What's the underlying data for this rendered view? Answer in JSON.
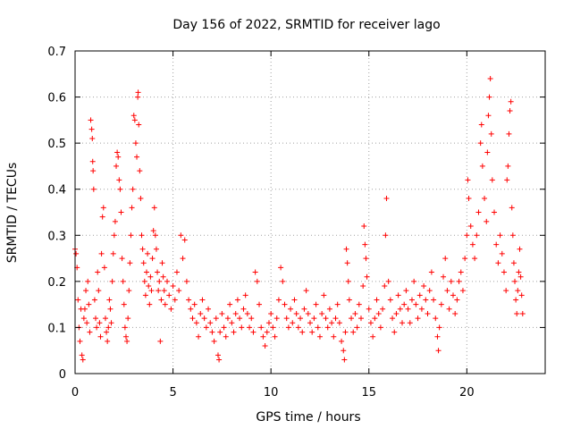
{
  "chart_data": {
    "type": "scatter",
    "title": "Day 156 of 2022, SRMTID for receiver lago",
    "xlabel": "GPS time / hours",
    "ylabel": "SRMTID / TECUs",
    "xlim": [
      0,
      24
    ],
    "ylim": [
      0,
      0.7
    ],
    "xticks": [
      0,
      5,
      10,
      15,
      20
    ],
    "xtick_labels": [
      "0",
      "5",
      "10",
      "15",
      "20"
    ],
    "yticks": [
      0,
      0.1,
      0.2,
      0.3,
      0.4,
      0.5,
      0.6,
      0.7
    ],
    "ytick_labels": [
      "0",
      "0.1",
      "0.2",
      "0.3",
      "0.4",
      "0.5",
      "0.6",
      "0.7"
    ],
    "grid": true,
    "marker": "+",
    "color": "#ff0000",
    "series": [
      {
        "name": "SRMTID",
        "points": [
          [
            0.0,
            0.27
          ],
          [
            0.05,
            0.26
          ],
          [
            0.1,
            0.23
          ],
          [
            0.15,
            0.16
          ],
          [
            0.2,
            0.1
          ],
          [
            0.25,
            0.07
          ],
          [
            0.3,
            0.14
          ],
          [
            0.35,
            0.04
          ],
          [
            0.4,
            0.03
          ],
          [
            0.45,
            0.12
          ],
          [
            0.5,
            0.14
          ],
          [
            0.55,
            0.18
          ],
          [
            0.6,
            0.11
          ],
          [
            0.65,
            0.2
          ],
          [
            0.7,
            0.15
          ],
          [
            0.75,
            0.09
          ],
          [
            0.8,
            0.55
          ],
          [
            0.85,
            0.53
          ],
          [
            0.88,
            0.51
          ],
          [
            0.9,
            0.46
          ],
          [
            0.92,
            0.44
          ],
          [
            0.95,
            0.4
          ],
          [
            1.0,
            0.16
          ],
          [
            1.05,
            0.12
          ],
          [
            1.1,
            0.1
          ],
          [
            1.15,
            0.22
          ],
          [
            1.2,
            0.18
          ],
          [
            1.25,
            0.11
          ],
          [
            1.3,
            0.08
          ],
          [
            1.35,
            0.26
          ],
          [
            1.4,
            0.34
          ],
          [
            1.45,
            0.36
          ],
          [
            1.5,
            0.23
          ],
          [
            1.55,
            0.12
          ],
          [
            1.6,
            0.09
          ],
          [
            1.65,
            0.07
          ],
          [
            1.7,
            0.1
          ],
          [
            1.75,
            0.16
          ],
          [
            1.8,
            0.14
          ],
          [
            1.85,
            0.11
          ],
          [
            1.9,
            0.2
          ],
          [
            1.95,
            0.26
          ],
          [
            2.0,
            0.3
          ],
          [
            2.05,
            0.33
          ],
          [
            2.1,
            0.45
          ],
          [
            2.15,
            0.48
          ],
          [
            2.2,
            0.47
          ],
          [
            2.25,
            0.42
          ],
          [
            2.3,
            0.4
          ],
          [
            2.35,
            0.35
          ],
          [
            2.4,
            0.25
          ],
          [
            2.45,
            0.2
          ],
          [
            2.5,
            0.15
          ],
          [
            2.55,
            0.1
          ],
          [
            2.6,
            0.08
          ],
          [
            2.65,
            0.07
          ],
          [
            2.7,
            0.12
          ],
          [
            2.75,
            0.18
          ],
          [
            2.8,
            0.24
          ],
          [
            2.85,
            0.3
          ],
          [
            2.9,
            0.36
          ],
          [
            2.95,
            0.4
          ],
          [
            3.0,
            0.56
          ],
          [
            3.05,
            0.55
          ],
          [
            3.1,
            0.5
          ],
          [
            3.15,
            0.47
          ],
          [
            3.2,
            0.6
          ],
          [
            3.22,
            0.61
          ],
          [
            3.25,
            0.54
          ],
          [
            3.3,
            0.44
          ],
          [
            3.35,
            0.38
          ],
          [
            3.4,
            0.3
          ],
          [
            3.45,
            0.27
          ],
          [
            3.5,
            0.24
          ],
          [
            3.55,
            0.2
          ],
          [
            3.6,
            0.17
          ],
          [
            3.65,
            0.22
          ],
          [
            3.7,
            0.26
          ],
          [
            3.75,
            0.19
          ],
          [
            3.8,
            0.15
          ],
          [
            3.85,
            0.21
          ],
          [
            3.9,
            0.18
          ],
          [
            3.95,
            0.25
          ],
          [
            4.0,
            0.31
          ],
          [
            4.05,
            0.36
          ],
          [
            4.1,
            0.3
          ],
          [
            4.15,
            0.27
          ],
          [
            4.2,
            0.22
          ],
          [
            4.25,
            0.18
          ],
          [
            4.3,
            0.2
          ],
          [
            4.35,
            0.07
          ],
          [
            4.4,
            0.16
          ],
          [
            4.45,
            0.24
          ],
          [
            4.5,
            0.21
          ],
          [
            4.55,
            0.18
          ],
          [
            4.6,
            0.15
          ],
          [
            4.7,
            0.2
          ],
          [
            4.8,
            0.17
          ],
          [
            4.9,
            0.14
          ],
          [
            5.0,
            0.19
          ],
          [
            5.1,
            0.16
          ],
          [
            5.2,
            0.22
          ],
          [
            5.3,
            0.18
          ],
          [
            5.4,
            0.3
          ],
          [
            5.5,
            0.25
          ],
          [
            5.6,
            0.29
          ],
          [
            5.7,
            0.2
          ],
          [
            5.8,
            0.16
          ],
          [
            5.9,
            0.14
          ],
          [
            6.0,
            0.12
          ],
          [
            6.1,
            0.15
          ],
          [
            6.2,
            0.11
          ],
          [
            6.3,
            0.08
          ],
          [
            6.4,
            0.13
          ],
          [
            6.5,
            0.16
          ],
          [
            6.6,
            0.12
          ],
          [
            6.7,
            0.1
          ],
          [
            6.8,
            0.14
          ],
          [
            6.9,
            0.11
          ],
          [
            7.0,
            0.09
          ],
          [
            7.1,
            0.07
          ],
          [
            7.2,
            0.12
          ],
          [
            7.3,
            0.04
          ],
          [
            7.35,
            0.03
          ],
          [
            7.4,
            0.09
          ],
          [
            7.5,
            0.13
          ],
          [
            7.6,
            0.1
          ],
          [
            7.7,
            0.08
          ],
          [
            7.8,
            0.12
          ],
          [
            7.9,
            0.15
          ],
          [
            8.0,
            0.11
          ],
          [
            8.1,
            0.09
          ],
          [
            8.2,
            0.13
          ],
          [
            8.3,
            0.16
          ],
          [
            8.4,
            0.12
          ],
          [
            8.5,
            0.1
          ],
          [
            8.6,
            0.14
          ],
          [
            8.7,
            0.17
          ],
          [
            8.8,
            0.13
          ],
          [
            8.9,
            0.1
          ],
          [
            9.0,
            0.12
          ],
          [
            9.1,
            0.09
          ],
          [
            9.2,
            0.22
          ],
          [
            9.3,
            0.2
          ],
          [
            9.4,
            0.15
          ],
          [
            9.5,
            0.1
          ],
          [
            9.6,
            0.08
          ],
          [
            9.7,
            0.06
          ],
          [
            9.8,
            0.09
          ],
          [
            9.9,
            0.11
          ],
          [
            10.0,
            0.13
          ],
          [
            10.1,
            0.1
          ],
          [
            10.2,
            0.08
          ],
          [
            10.3,
            0.12
          ],
          [
            10.4,
            0.16
          ],
          [
            10.5,
            0.23
          ],
          [
            10.6,
            0.2
          ],
          [
            10.7,
            0.15
          ],
          [
            10.8,
            0.12
          ],
          [
            10.9,
            0.1
          ],
          [
            11.0,
            0.14
          ],
          [
            11.1,
            0.11
          ],
          [
            11.2,
            0.16
          ],
          [
            11.3,
            0.13
          ],
          [
            11.4,
            0.1
          ],
          [
            11.5,
            0.12
          ],
          [
            11.6,
            0.09
          ],
          [
            11.7,
            0.14
          ],
          [
            11.8,
            0.18
          ],
          [
            11.9,
            0.13
          ],
          [
            12.0,
            0.11
          ],
          [
            12.1,
            0.09
          ],
          [
            12.2,
            0.12
          ],
          [
            12.3,
            0.15
          ],
          [
            12.4,
            0.1
          ],
          [
            12.5,
            0.08
          ],
          [
            12.6,
            0.13
          ],
          [
            12.7,
            0.17
          ],
          [
            12.8,
            0.12
          ],
          [
            12.9,
            0.1
          ],
          [
            13.0,
            0.14
          ],
          [
            13.1,
            0.11
          ],
          [
            13.2,
            0.08
          ],
          [
            13.3,
            0.12
          ],
          [
            13.4,
            0.15
          ],
          [
            13.5,
            0.11
          ],
          [
            13.6,
            0.07
          ],
          [
            13.7,
            0.05
          ],
          [
            13.75,
            0.03
          ],
          [
            13.8,
            0.09
          ],
          [
            13.85,
            0.27
          ],
          [
            13.9,
            0.24
          ],
          [
            13.95,
            0.2
          ],
          [
            14.0,
            0.16
          ],
          [
            14.1,
            0.12
          ],
          [
            14.2,
            0.09
          ],
          [
            14.3,
            0.13
          ],
          [
            14.4,
            0.1
          ],
          [
            14.5,
            0.15
          ],
          [
            14.6,
            0.12
          ],
          [
            14.7,
            0.19
          ],
          [
            14.75,
            0.32
          ],
          [
            14.8,
            0.28
          ],
          [
            14.85,
            0.25
          ],
          [
            14.9,
            0.21
          ],
          [
            15.0,
            0.14
          ],
          [
            15.1,
            0.11
          ],
          [
            15.2,
            0.08
          ],
          [
            15.3,
            0.12
          ],
          [
            15.4,
            0.16
          ],
          [
            15.5,
            0.13
          ],
          [
            15.6,
            0.1
          ],
          [
            15.7,
            0.14
          ],
          [
            15.8,
            0.19
          ],
          [
            15.85,
            0.3
          ],
          [
            15.9,
            0.38
          ],
          [
            16.0,
            0.2
          ],
          [
            16.1,
            0.16
          ],
          [
            16.2,
            0.12
          ],
          [
            16.3,
            0.09
          ],
          [
            16.4,
            0.13
          ],
          [
            16.5,
            0.17
          ],
          [
            16.6,
            0.14
          ],
          [
            16.7,
            0.11
          ],
          [
            16.8,
            0.15
          ],
          [
            16.9,
            0.18
          ],
          [
            17.0,
            0.14
          ],
          [
            17.1,
            0.11
          ],
          [
            17.2,
            0.16
          ],
          [
            17.3,
            0.2
          ],
          [
            17.4,
            0.15
          ],
          [
            17.5,
            0.12
          ],
          [
            17.6,
            0.17
          ],
          [
            17.7,
            0.14
          ],
          [
            17.8,
            0.19
          ],
          [
            17.9,
            0.16
          ],
          [
            18.0,
            0.13
          ],
          [
            18.1,
            0.18
          ],
          [
            18.2,
            0.22
          ],
          [
            18.3,
            0.16
          ],
          [
            18.4,
            0.12
          ],
          [
            18.5,
            0.08
          ],
          [
            18.55,
            0.05
          ],
          [
            18.6,
            0.1
          ],
          [
            18.7,
            0.15
          ],
          [
            18.8,
            0.21
          ],
          [
            18.9,
            0.25
          ],
          [
            19.0,
            0.18
          ],
          [
            19.1,
            0.14
          ],
          [
            19.2,
            0.2
          ],
          [
            19.3,
            0.17
          ],
          [
            19.4,
            0.13
          ],
          [
            19.5,
            0.16
          ],
          [
            19.6,
            0.2
          ],
          [
            19.7,
            0.22
          ],
          [
            19.8,
            0.18
          ],
          [
            19.9,
            0.25
          ],
          [
            20.0,
            0.3
          ],
          [
            20.05,
            0.42
          ],
          [
            20.1,
            0.38
          ],
          [
            20.2,
            0.32
          ],
          [
            20.3,
            0.28
          ],
          [
            20.4,
            0.25
          ],
          [
            20.5,
            0.3
          ],
          [
            20.6,
            0.35
          ],
          [
            20.7,
            0.5
          ],
          [
            20.75,
            0.54
          ],
          [
            20.8,
            0.45
          ],
          [
            20.9,
            0.38
          ],
          [
            21.0,
            0.33
          ],
          [
            21.05,
            0.48
          ],
          [
            21.1,
            0.56
          ],
          [
            21.15,
            0.6
          ],
          [
            21.2,
            0.64
          ],
          [
            21.25,
            0.52
          ],
          [
            21.3,
            0.42
          ],
          [
            21.4,
            0.35
          ],
          [
            21.5,
            0.28
          ],
          [
            21.6,
            0.24
          ],
          [
            21.7,
            0.3
          ],
          [
            21.8,
            0.26
          ],
          [
            21.9,
            0.22
          ],
          [
            22.0,
            0.18
          ],
          [
            22.05,
            0.42
          ],
          [
            22.1,
            0.45
          ],
          [
            22.15,
            0.52
          ],
          [
            22.2,
            0.57
          ],
          [
            22.25,
            0.59
          ],
          [
            22.3,
            0.36
          ],
          [
            22.35,
            0.3
          ],
          [
            22.4,
            0.24
          ],
          [
            22.45,
            0.2
          ],
          [
            22.5,
            0.16
          ],
          [
            22.55,
            0.13
          ],
          [
            22.6,
            0.18
          ],
          [
            22.65,
            0.22
          ],
          [
            22.7,
            0.27
          ],
          [
            22.75,
            0.21
          ],
          [
            22.8,
            0.17
          ],
          [
            22.85,
            0.13
          ]
        ]
      }
    ]
  }
}
